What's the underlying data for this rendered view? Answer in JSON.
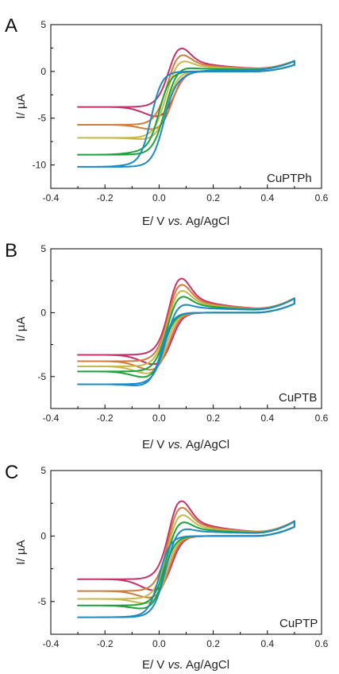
{
  "colors": {
    "series": [
      "#c8306a",
      "#d17c3a",
      "#c8b84a",
      "#1aa43a",
      "#1a8ac8"
    ]
  },
  "chart_data": [
    {
      "type": "line",
      "panel": "A",
      "sample": "CuPTPh",
      "xlabel_prefix": "E/ V ",
      "xlabel_italic": "vs.",
      "xlabel_suffix": " Ag/AgCl",
      "ylabel": "I/ µA",
      "xlim": [
        -0.4,
        0.6
      ],
      "ylim": [
        -12.5,
        5
      ],
      "xticks": [
        -0.4,
        -0.2,
        0.0,
        0.2,
        0.4,
        0.6
      ],
      "xtick_labels": [
        "-0.4",
        "-0.2",
        "0.0",
        "0.2",
        "0.4",
        "0.6"
      ],
      "yticks": [
        -10,
        -5,
        0,
        5
      ],
      "ytick_labels": [
        "-10",
        "-5",
        "0",
        "5"
      ],
      "grid": false,
      "series": [
        {
          "anodic_peak": 2.9,
          "cathodic_end": -3.8,
          "cathodic_min": -5.8,
          "cathodic_peak_e": 0.01
        },
        {
          "anodic_peak": 2.2,
          "cathodic_end": -5.7,
          "cathodic_min": -6.8,
          "cathodic_peak_e": 0.0
        },
        {
          "anodic_peak": 1.5,
          "cathodic_end": -7.1,
          "cathodic_min": -7.5,
          "cathodic_peak_e": -0.02
        },
        {
          "anodic_peak": 0.6,
          "cathodic_end": -8.9,
          "cathodic_min": -8.4,
          "cathodic_peak_e": -0.05
        },
        {
          "anodic_peak": -0.3,
          "cathodic_end": -10.2,
          "cathodic_min": -9.9,
          "cathodic_peak_e": -0.08
        }
      ]
    },
    {
      "type": "line",
      "panel": "B",
      "sample": "CuPTB",
      "xlabel_prefix": "E/ V ",
      "xlabel_italic": "vs.",
      "xlabel_suffix": " Ag/AgCl",
      "ylabel": "I/ µA",
      "xlim": [
        -0.4,
        0.6
      ],
      "ylim": [
        -7.5,
        5
      ],
      "xticks": [
        -0.4,
        -0.2,
        0.0,
        0.2,
        0.4,
        0.6
      ],
      "xtick_labels": [
        "-0.4",
        "-0.2",
        "0.0",
        "0.2",
        "0.4",
        "0.6"
      ],
      "yticks": [
        -5,
        0,
        5
      ],
      "ytick_labels": [
        "-5",
        "0",
        "5"
      ],
      "grid": false,
      "series": [
        {
          "anodic_peak": 3.1,
          "cathodic_end": -3.3,
          "cathodic_min": -4.8,
          "cathodic_peak_e": 0.0
        },
        {
          "anodic_peak": 2.6,
          "cathodic_end": -3.8,
          "cathodic_min": -5.2,
          "cathodic_peak_e": -0.01
        },
        {
          "anodic_peak": 2.1,
          "cathodic_end": -4.2,
          "cathodic_min": -5.4,
          "cathodic_peak_e": -0.02
        },
        {
          "anodic_peak": 1.6,
          "cathodic_end": -4.6,
          "cathodic_min": -5.6,
          "cathodic_peak_e": -0.03
        },
        {
          "anodic_peak": 0.9,
          "cathodic_end": -5.6,
          "cathodic_min": -5.9,
          "cathodic_peak_e": -0.04
        }
      ]
    },
    {
      "type": "line",
      "panel": "C",
      "sample": "CuPTP",
      "xlabel_prefix": "E/ V ",
      "xlabel_italic": "vs.",
      "xlabel_suffix": " Ag/AgCl",
      "ylabel": "I/ µA",
      "xlim": [
        -0.4,
        0.6
      ],
      "ylim": [
        -7.5,
        5
      ],
      "xticks": [
        -0.4,
        -0.2,
        0.0,
        0.2,
        0.4,
        0.6
      ],
      "xtick_labels": [
        "-0.4",
        "-0.2",
        "0.0",
        "0.2",
        "0.4",
        "0.6"
      ],
      "yticks": [
        -5,
        0,
        5
      ],
      "ytick_labels": [
        "-5",
        "0",
        "5"
      ],
      "grid": false,
      "series": [
        {
          "anodic_peak": 3.1,
          "cathodic_end": -3.3,
          "cathodic_min": -5.0,
          "cathodic_peak_e": 0.0
        },
        {
          "anodic_peak": 2.6,
          "cathodic_end": -4.2,
          "cathodic_min": -5.3,
          "cathodic_peak_e": -0.01
        },
        {
          "anodic_peak": 2.0,
          "cathodic_end": -4.8,
          "cathodic_min": -5.6,
          "cathodic_peak_e": -0.02
        },
        {
          "anodic_peak": 1.4,
          "cathodic_end": -5.3,
          "cathodic_min": -5.9,
          "cathodic_peak_e": -0.03
        },
        {
          "anodic_peak": 0.8,
          "cathodic_end": -6.2,
          "cathodic_min": -6.1,
          "cathodic_peak_e": -0.05
        }
      ]
    }
  ]
}
